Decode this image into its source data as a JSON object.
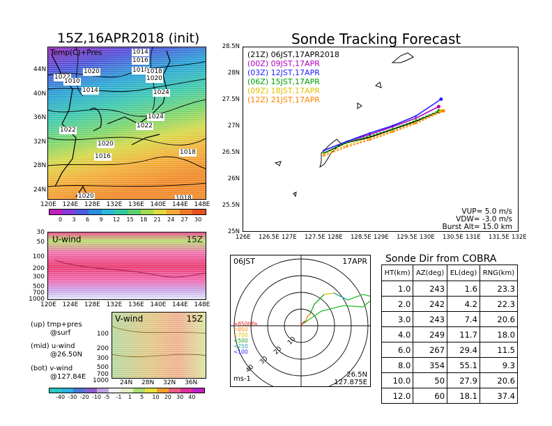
{
  "map_panel": {
    "title": "15Z,16APR2018 (init)",
    "label": "Temp(C)+Pres",
    "lat_ticks": [
      "44N",
      "40N",
      "36N",
      "32N",
      "28N",
      "24N"
    ],
    "lon_ticks": [
      "120E",
      "124E",
      "128E",
      "132E",
      "136E",
      "140E",
      "144E",
      "148E"
    ],
    "isobar_labels": [
      "1014",
      "1016",
      "1018",
      "1020",
      "1022",
      "1010",
      "1014",
      "1018",
      "1020",
      "1024",
      "1024",
      "1022",
      "1022",
      "1020",
      "1018",
      "1016",
      "1020",
      "1018",
      "1016"
    ],
    "colorbar_ticks": [
      "0",
      "3",
      "6",
      "9",
      "12",
      "15",
      "18",
      "21",
      "24",
      "27",
      "30"
    ]
  },
  "uwind_panel": {
    "label": "U-wind",
    "time": "15Z",
    "levels": [
      "30",
      "50",
      "100",
      "200",
      "300",
      "500",
      "700",
      "1000"
    ],
    "lon_ticks": [
      "120E",
      "124E",
      "128E",
      "132E",
      "136E",
      "140E",
      "144E",
      "148E"
    ]
  },
  "vwind_panel": {
    "label": "V-wind",
    "time": "15Z",
    "levels": [
      "100",
      "200",
      "300",
      "500",
      "700",
      "1000"
    ],
    "lat_ticks": [
      "24N",
      "28N",
      "32N",
      "36N"
    ]
  },
  "legend_notes": {
    "up": "(up) tmp+pres",
    "up2": "@surf",
    "mid": "(mid) u-wind",
    "mid2": "@26.50N",
    "bot": "(bot) v-wind",
    "bot2": "@127.84E"
  },
  "wind_colorbar_ticks": [
    "-40",
    "-30",
    "-20",
    "-10",
    "-5",
    "-1",
    "1",
    "5",
    "10",
    "20",
    "30",
    "40"
  ],
  "track_panel": {
    "title": "Sonde Tracking Forecast",
    "lat_ticks": [
      "28.5N",
      "28N",
      "27.5N",
      "27N",
      "26.5N",
      "26N",
      "25.5N",
      "25N"
    ],
    "lon_ticks": [
      "126E",
      "126.5E",
      "127E",
      "127.5E",
      "128E",
      "128.5E",
      "129E",
      "129.5E",
      "130E",
      "130.5E",
      "131E",
      "131.5E",
      "132E"
    ],
    "vup": "VUP=  5.0  m/s",
    "vdw": "VDW= -3.0  m/s",
    "burst": "Burst Alt=  15.0  km"
  },
  "hodo_panel": {
    "time": "06JST",
    "date": "17APR",
    "rings": [
      "10",
      "20",
      "30",
      "40"
    ],
    "unit": "ms-1",
    "lat": "26.5N",
    "lon": "127.875E",
    "legend": [
      "≥850hPa",
      "<850",
      "<700",
      "<500",
      "<250",
      "<100"
    ]
  },
  "sonde_table": {
    "title": "Sonde Dir from COBRA",
    "headers": [
      "HT(km)",
      "AZ(deg)",
      "EL(deg)",
      "RNG(km)"
    ],
    "rows": [
      [
        "1.0",
        "243",
        "1.6",
        "23.3"
      ],
      [
        "2.0",
        "242",
        "4.2",
        "22.3"
      ],
      [
        "3.0",
        "243",
        "7.4",
        "20.6"
      ],
      [
        "4.0",
        "249",
        "11.7",
        "18.0"
      ],
      [
        "6.0",
        "267",
        "29.4",
        "11.5"
      ],
      [
        "8.0",
        "354",
        "55.1",
        "9.3"
      ],
      [
        "10.0",
        "50",
        "27.9",
        "20.6"
      ],
      [
        "12.0",
        "60",
        "18.1",
        "37.4"
      ]
    ]
  },
  "chart_data": [
    {
      "type": "line",
      "title": "Sonde Tracking Forecast",
      "xlim": [
        126,
        132
      ],
      "ylim": [
        25,
        28.5
      ],
      "series": [
        {
          "name": "(21Z)  06JST,17APR2018",
          "color": "#000000",
          "x": [
            127.75,
            128.25,
            128.75,
            129.25,
            129.75,
            130.25
          ],
          "y": [
            26.5,
            26.7,
            26.8,
            26.95,
            27.1,
            27.28
          ]
        },
        {
          "name": "(00Z)  09JST,17APR",
          "color": "#b000c0",
          "x": [
            127.75,
            128.25,
            128.75,
            129.25,
            129.75,
            130.25
          ],
          "y": [
            26.55,
            26.72,
            26.85,
            27.0,
            27.16,
            27.38
          ]
        },
        {
          "name": "(03Z)  12JST,17APR",
          "color": "#2020ff",
          "x": [
            127.75,
            128.25,
            128.75,
            129.25,
            129.75,
            130.3
          ],
          "y": [
            26.55,
            26.72,
            26.88,
            27.02,
            27.2,
            27.52
          ]
        },
        {
          "name": "(06Z)  15JST,17APR",
          "color": "#00a000",
          "x": [
            127.75,
            128.25,
            128.75,
            129.25,
            129.75,
            130.25
          ],
          "y": [
            26.5,
            26.7,
            26.82,
            26.96,
            27.12,
            27.3
          ]
        },
        {
          "name": "(09Z)  18JST,17APR",
          "color": "#e0c000",
          "x": [
            127.75,
            128.25,
            128.75,
            129.25,
            129.75,
            130.3
          ],
          "y": [
            26.48,
            26.65,
            26.78,
            26.92,
            27.08,
            27.3
          ]
        },
        {
          "name": "(12Z)  21JST,17APR",
          "color": "#ff8000",
          "x": [
            127.75,
            128.25,
            128.75,
            129.25,
            129.75,
            130.35
          ],
          "y": [
            26.45,
            26.62,
            26.75,
            26.9,
            27.06,
            27.3
          ]
        }
      ]
    },
    {
      "type": "table",
      "title": "Sonde Dir from COBRA",
      "columns": [
        "HT(km)",
        "AZ(deg)",
        "EL(deg)",
        "RNG(km)"
      ],
      "rows": [
        [
          1.0,
          243,
          1.6,
          23.3
        ],
        [
          2.0,
          242,
          4.2,
          22.3
        ],
        [
          3.0,
          243,
          7.4,
          20.6
        ],
        [
          4.0,
          249,
          11.7,
          18.0
        ],
        [
          6.0,
          267,
          29.4,
          11.5
        ],
        [
          8.0,
          354,
          55.1,
          9.3
        ],
        [
          10.0,
          50,
          27.9,
          20.6
        ],
        [
          12.0,
          60,
          18.1,
          37.4
        ]
      ]
    }
  ]
}
